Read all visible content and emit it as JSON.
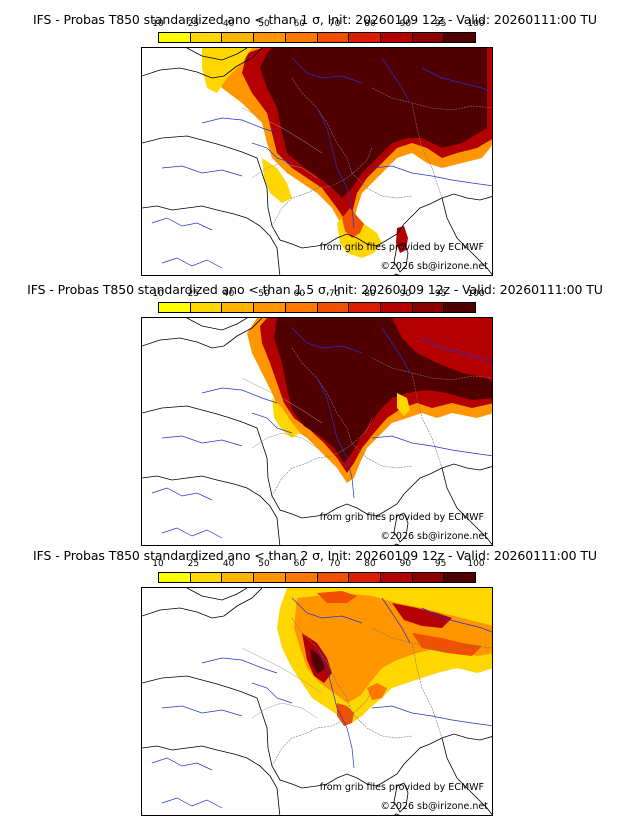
{
  "colorbar": {
    "ticks": [
      "10",
      "25",
      "40",
      "50",
      "60",
      "70",
      "80",
      "90",
      "95",
      "100"
    ],
    "colors": [
      "#ffff00",
      "#ffd700",
      "#ffb400",
      "#ff9600",
      "#ff7800",
      "#f05000",
      "#dc1e00",
      "#b40000",
      "#8c0000",
      "#500000"
    ]
  },
  "panels": [
    {
      "title": "IFS - Probas T850  standardized ano < than 1 σ, Init: 20260109 12z - Valid: 20260111:00 TU",
      "credit_source": "from grib files provided by ECMWF",
      "credit_copyright": "©2026 sb@irizone.net"
    },
    {
      "title": "IFS - Probas T850  standardized ano < than 1.5 σ, Init: 20260109 12z - Valid: 20260111:00 TU",
      "credit_source": "from grib files provided by ECMWF",
      "credit_copyright": "©2026 sb@irizone.net"
    },
    {
      "title": "IFS - Probas T850  standardized ano < than 2 σ, Init: 20260109 12z - Valid: 20260111:00 TU",
      "credit_source": "from grib files provided by ECMWF",
      "credit_copyright": "©2026 sb@irizone.net"
    }
  ]
}
